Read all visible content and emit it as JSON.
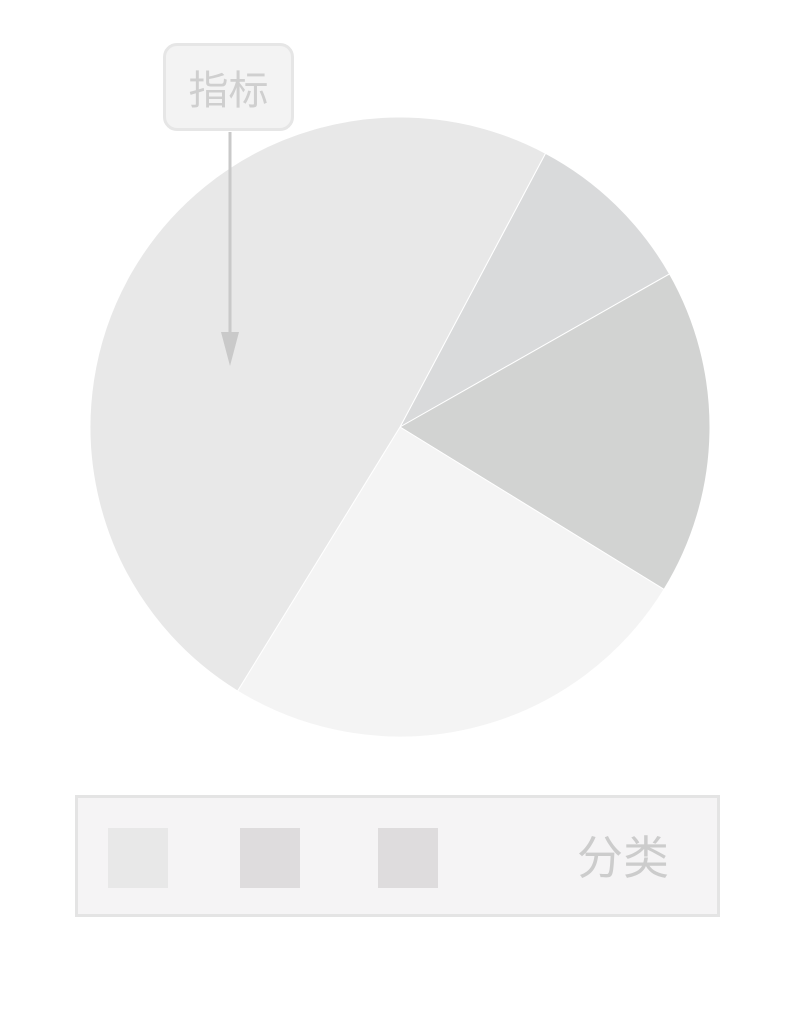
{
  "chart_data": {
    "type": "pie",
    "values": [
      9,
      17,
      25,
      49
    ],
    "colors": [
      "#d9dadb",
      "#d2d3d2",
      "#f4f4f4",
      "#e8e8e8"
    ],
    "annotation": "指标",
    "legend": {
      "title": "分类",
      "placement": "bottom",
      "swatch_colors": [
        "#e8e8e8",
        "#dedcdd",
        "#dedcdd"
      ]
    }
  }
}
